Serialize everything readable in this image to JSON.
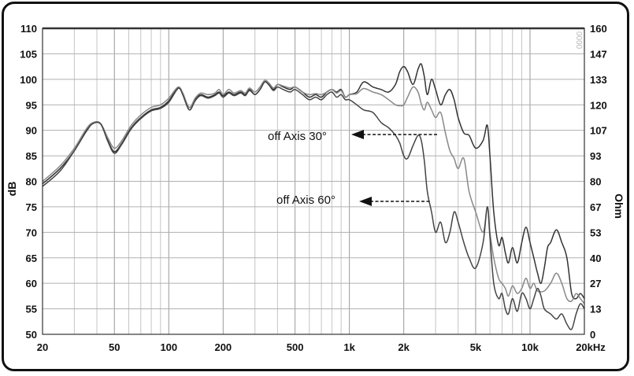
{
  "chart_data": {
    "type": "line",
    "xscale": "log",
    "x_range_hz": [
      20,
      20000
    ],
    "y_left_range_db": [
      50,
      110
    ],
    "y_right_range_ohm": [
      0,
      160
    ],
    "grid": true,
    "ylabel_left": "dB",
    "ylabel_right": "Ohm",
    "watermark": "0000",
    "x_ticks": [
      {
        "value": 20,
        "label": "20"
      },
      {
        "value": 50,
        "label": "50"
      },
      {
        "value": 100,
        "label": "100"
      },
      {
        "value": 200,
        "label": "200"
      },
      {
        "value": 500,
        "label": "500"
      },
      {
        "value": 1000,
        "label": "1k"
      },
      {
        "value": 2000,
        "label": "2k"
      },
      {
        "value": 5000,
        "label": "5k"
      },
      {
        "value": 10000,
        "label": "10k"
      },
      {
        "value": 20000,
        "label": "20kHz"
      }
    ],
    "y_left_ticks": [
      "110",
      "105",
      "100",
      "95",
      "90",
      "85",
      "80",
      "75",
      "70",
      "65",
      "60",
      "55",
      "50"
    ],
    "y_right_ticks": [
      "160",
      "147",
      "133",
      "120",
      "107",
      "93",
      "80",
      "67",
      "53",
      "40",
      "27",
      "13",
      "0"
    ],
    "annotations": [
      {
        "text": "off Axis 30°",
        "series": "off-axis-30"
      },
      {
        "text": "off Axis 60°",
        "series": "off-axis-60"
      }
    ],
    "series": [
      {
        "id": "on-axis",
        "color": "#333333",
        "points": [
          [
            20,
            79.5
          ],
          [
            25,
            82.5
          ],
          [
            30,
            86
          ],
          [
            35,
            90
          ],
          [
            38,
            91.5
          ],
          [
            42,
            91.3
          ],
          [
            46,
            88
          ],
          [
            50,
            85.8
          ],
          [
            55,
            87.5
          ],
          [
            62,
            90.5
          ],
          [
            70,
            92.5
          ],
          [
            80,
            94
          ],
          [
            90,
            94.5
          ],
          [
            100,
            95.8
          ],
          [
            110,
            98
          ],
          [
            115,
            98.3
          ],
          [
            120,
            97
          ],
          [
            130,
            94
          ],
          [
            140,
            96
          ],
          [
            150,
            97
          ],
          [
            165,
            96.5
          ],
          [
            180,
            97
          ],
          [
            190,
            97.5
          ],
          [
            200,
            96.8
          ],
          [
            215,
            97.5
          ],
          [
            230,
            97
          ],
          [
            250,
            97.5
          ],
          [
            265,
            97
          ],
          [
            280,
            98
          ],
          [
            300,
            97
          ],
          [
            320,
            98
          ],
          [
            340,
            99.5
          ],
          [
            360,
            99
          ],
          [
            380,
            98
          ],
          [
            400,
            99
          ],
          [
            430,
            98.5
          ],
          [
            470,
            98
          ],
          [
            500,
            98.5
          ],
          [
            550,
            97.5
          ],
          [
            600,
            96.5
          ],
          [
            650,
            97
          ],
          [
            700,
            96.5
          ],
          [
            750,
            97.5
          ],
          [
            800,
            98
          ],
          [
            850,
            97.5
          ],
          [
            900,
            98
          ],
          [
            950,
            96.5
          ],
          [
            1000,
            97
          ],
          [
            1100,
            97.5
          ],
          [
            1200,
            99.5
          ],
          [
            1350,
            98.5
          ],
          [
            1500,
            98
          ],
          [
            1650,
            97.5
          ],
          [
            1800,
            99
          ],
          [
            1900,
            101.5
          ],
          [
            2000,
            102.5
          ],
          [
            2100,
            101.5
          ],
          [
            2250,
            99
          ],
          [
            2400,
            102
          ],
          [
            2500,
            103
          ],
          [
            2600,
            100.5
          ],
          [
            2700,
            97
          ],
          [
            2850,
            100
          ],
          [
            3000,
            98
          ],
          [
            3200,
            95
          ],
          [
            3400,
            97
          ],
          [
            3600,
            98
          ],
          [
            3800,
            96
          ],
          [
            4000,
            92.5
          ],
          [
            4300,
            89.5
          ],
          [
            4600,
            89
          ],
          [
            5000,
            86.5
          ],
          [
            5500,
            88
          ],
          [
            5800,
            91
          ],
          [
            6000,
            85
          ],
          [
            6300,
            74
          ],
          [
            6700,
            67.5
          ],
          [
            7000,
            69
          ],
          [
            7300,
            66
          ],
          [
            7600,
            64
          ],
          [
            8000,
            67
          ],
          [
            8500,
            64
          ],
          [
            9000,
            68
          ],
          [
            9500,
            71
          ],
          [
            10000,
            68
          ],
          [
            10500,
            65
          ],
          [
            11000,
            62
          ],
          [
            11500,
            60
          ],
          [
            12000,
            63
          ],
          [
            12500,
            67
          ],
          [
            13000,
            68
          ],
          [
            14000,
            70.5
          ],
          [
            15000,
            68
          ],
          [
            16000,
            65
          ],
          [
            17000,
            58
          ],
          [
            18000,
            57
          ],
          [
            19000,
            58
          ],
          [
            20000,
            57
          ]
        ]
      },
      {
        "id": "off-axis-30",
        "color": "#888888",
        "points": [
          [
            20,
            80
          ],
          [
            25,
            83
          ],
          [
            30,
            86.5
          ],
          [
            35,
            90.3
          ],
          [
            38,
            91.5
          ],
          [
            42,
            91.3
          ],
          [
            46,
            88.5
          ],
          [
            50,
            86.5
          ],
          [
            55,
            88
          ],
          [
            62,
            91
          ],
          [
            70,
            93
          ],
          [
            80,
            94.5
          ],
          [
            90,
            95
          ],
          [
            100,
            96.3
          ],
          [
            110,
            98.2
          ],
          [
            115,
            98.4
          ],
          [
            120,
            97.2
          ],
          [
            130,
            94.5
          ],
          [
            140,
            96.3
          ],
          [
            150,
            97.3
          ],
          [
            165,
            97
          ],
          [
            180,
            97.3
          ],
          [
            190,
            98
          ],
          [
            200,
            97
          ],
          [
            215,
            98
          ],
          [
            230,
            97.3
          ],
          [
            250,
            97.8
          ],
          [
            265,
            97.3
          ],
          [
            280,
            98.3
          ],
          [
            300,
            97.5
          ],
          [
            320,
            98.5
          ],
          [
            340,
            99.8
          ],
          [
            360,
            99.2
          ],
          [
            380,
            98.3
          ],
          [
            400,
            99
          ],
          [
            430,
            98.7
          ],
          [
            470,
            98.3
          ],
          [
            500,
            98.5
          ],
          [
            550,
            97.5
          ],
          [
            600,
            97
          ],
          [
            650,
            97.2
          ],
          [
            700,
            97
          ],
          [
            750,
            97.5
          ],
          [
            800,
            98
          ],
          [
            850,
            97.3
          ],
          [
            900,
            97.8
          ],
          [
            950,
            96.5
          ],
          [
            1000,
            97
          ],
          [
            1100,
            97.2
          ],
          [
            1200,
            98.2
          ],
          [
            1350,
            97.5
          ],
          [
            1500,
            97
          ],
          [
            1650,
            96
          ],
          [
            1800,
            95
          ],
          [
            1900,
            94.8
          ],
          [
            2000,
            95
          ],
          [
            2100,
            96.5
          ],
          [
            2250,
            98.5
          ],
          [
            2400,
            97.5
          ],
          [
            2500,
            95.2
          ],
          [
            2600,
            94
          ],
          [
            2700,
            95.5
          ],
          [
            2850,
            94
          ],
          [
            3000,
            92.5
          ],
          [
            3200,
            93.5
          ],
          [
            3400,
            89.5
          ],
          [
            3600,
            86
          ],
          [
            3800,
            84.5
          ],
          [
            4000,
            82.5
          ],
          [
            4300,
            84.5
          ],
          [
            4600,
            78
          ],
          [
            5000,
            74
          ],
          [
            5500,
            70
          ],
          [
            5800,
            75
          ],
          [
            6000,
            70
          ],
          [
            6300,
            65
          ],
          [
            6700,
            61
          ],
          [
            7000,
            60
          ],
          [
            7300,
            59
          ],
          [
            7600,
            57.5
          ],
          [
            8000,
            59.5
          ],
          [
            8500,
            58
          ],
          [
            9000,
            59
          ],
          [
            9500,
            61
          ],
          [
            10000,
            59
          ],
          [
            10500,
            60
          ],
          [
            11000,
            58.5
          ],
          [
            12000,
            58.5
          ],
          [
            13000,
            60
          ],
          [
            14000,
            62
          ],
          [
            15000,
            60
          ],
          [
            16000,
            57
          ],
          [
            17000,
            56.5
          ],
          [
            18000,
            58
          ],
          [
            19000,
            57
          ],
          [
            20000,
            56
          ]
        ]
      },
      {
        "id": "off-axis-60",
        "color": "#444444",
        "points": [
          [
            20,
            79
          ],
          [
            25,
            82
          ],
          [
            30,
            86
          ],
          [
            35,
            89.8
          ],
          [
            38,
            91.3
          ],
          [
            42,
            91.2
          ],
          [
            46,
            87.8
          ],
          [
            50,
            85.5
          ],
          [
            55,
            87.3
          ],
          [
            62,
            90.3
          ],
          [
            70,
            92.3
          ],
          [
            80,
            93.8
          ],
          [
            90,
            94.3
          ],
          [
            100,
            95.5
          ],
          [
            110,
            97.8
          ],
          [
            115,
            98.2
          ],
          [
            120,
            96.8
          ],
          [
            130,
            94
          ],
          [
            140,
            95.8
          ],
          [
            150,
            96.8
          ],
          [
            165,
            96.3
          ],
          [
            180,
            96.8
          ],
          [
            190,
            97.3
          ],
          [
            200,
            96.5
          ],
          [
            215,
            97.3
          ],
          [
            230,
            96.8
          ],
          [
            250,
            97.3
          ],
          [
            265,
            96.8
          ],
          [
            280,
            97.8
          ],
          [
            300,
            97
          ],
          [
            320,
            98
          ],
          [
            340,
            99.5
          ],
          [
            360,
            98.8
          ],
          [
            380,
            97.8
          ],
          [
            400,
            98.5
          ],
          [
            430,
            98
          ],
          [
            470,
            97.5
          ],
          [
            500,
            98
          ],
          [
            550,
            97
          ],
          [
            600,
            96
          ],
          [
            650,
            96.5
          ],
          [
            700,
            96
          ],
          [
            750,
            97
          ],
          [
            800,
            97.5
          ],
          [
            850,
            96.5
          ],
          [
            900,
            97
          ],
          [
            950,
            96
          ],
          [
            1000,
            96
          ],
          [
            1100,
            95
          ],
          [
            1200,
            94
          ],
          [
            1350,
            93.5
          ],
          [
            1500,
            91.5
          ],
          [
            1650,
            90.5
          ],
          [
            1800,
            89
          ],
          [
            1900,
            87.5
          ],
          [
            2000,
            85
          ],
          [
            2100,
            84.5
          ],
          [
            2250,
            87
          ],
          [
            2400,
            89
          ],
          [
            2500,
            88
          ],
          [
            2600,
            84
          ],
          [
            2700,
            78
          ],
          [
            2850,
            74
          ],
          [
            3000,
            70
          ],
          [
            3200,
            72
          ],
          [
            3400,
            68
          ],
          [
            3600,
            70
          ],
          [
            3800,
            74
          ],
          [
            4000,
            72
          ],
          [
            4300,
            68
          ],
          [
            4600,
            65
          ],
          [
            5000,
            63
          ],
          [
            5500,
            68
          ],
          [
            5800,
            75
          ],
          [
            6000,
            69
          ],
          [
            6300,
            60
          ],
          [
            6700,
            57
          ],
          [
            7000,
            58
          ],
          [
            7300,
            55
          ],
          [
            7600,
            54
          ],
          [
            8000,
            57
          ],
          [
            8500,
            54.5
          ],
          [
            9000,
            58
          ],
          [
            9500,
            57
          ],
          [
            10000,
            55
          ],
          [
            10500,
            57
          ],
          [
            11000,
            59
          ],
          [
            11500,
            57.5
          ],
          [
            12000,
            55
          ],
          [
            13000,
            54
          ],
          [
            14000,
            53
          ],
          [
            15000,
            54
          ],
          [
            16000,
            52
          ],
          [
            17000,
            51
          ],
          [
            18000,
            54
          ],
          [
            19000,
            56
          ],
          [
            20000,
            55
          ]
        ]
      }
    ]
  }
}
